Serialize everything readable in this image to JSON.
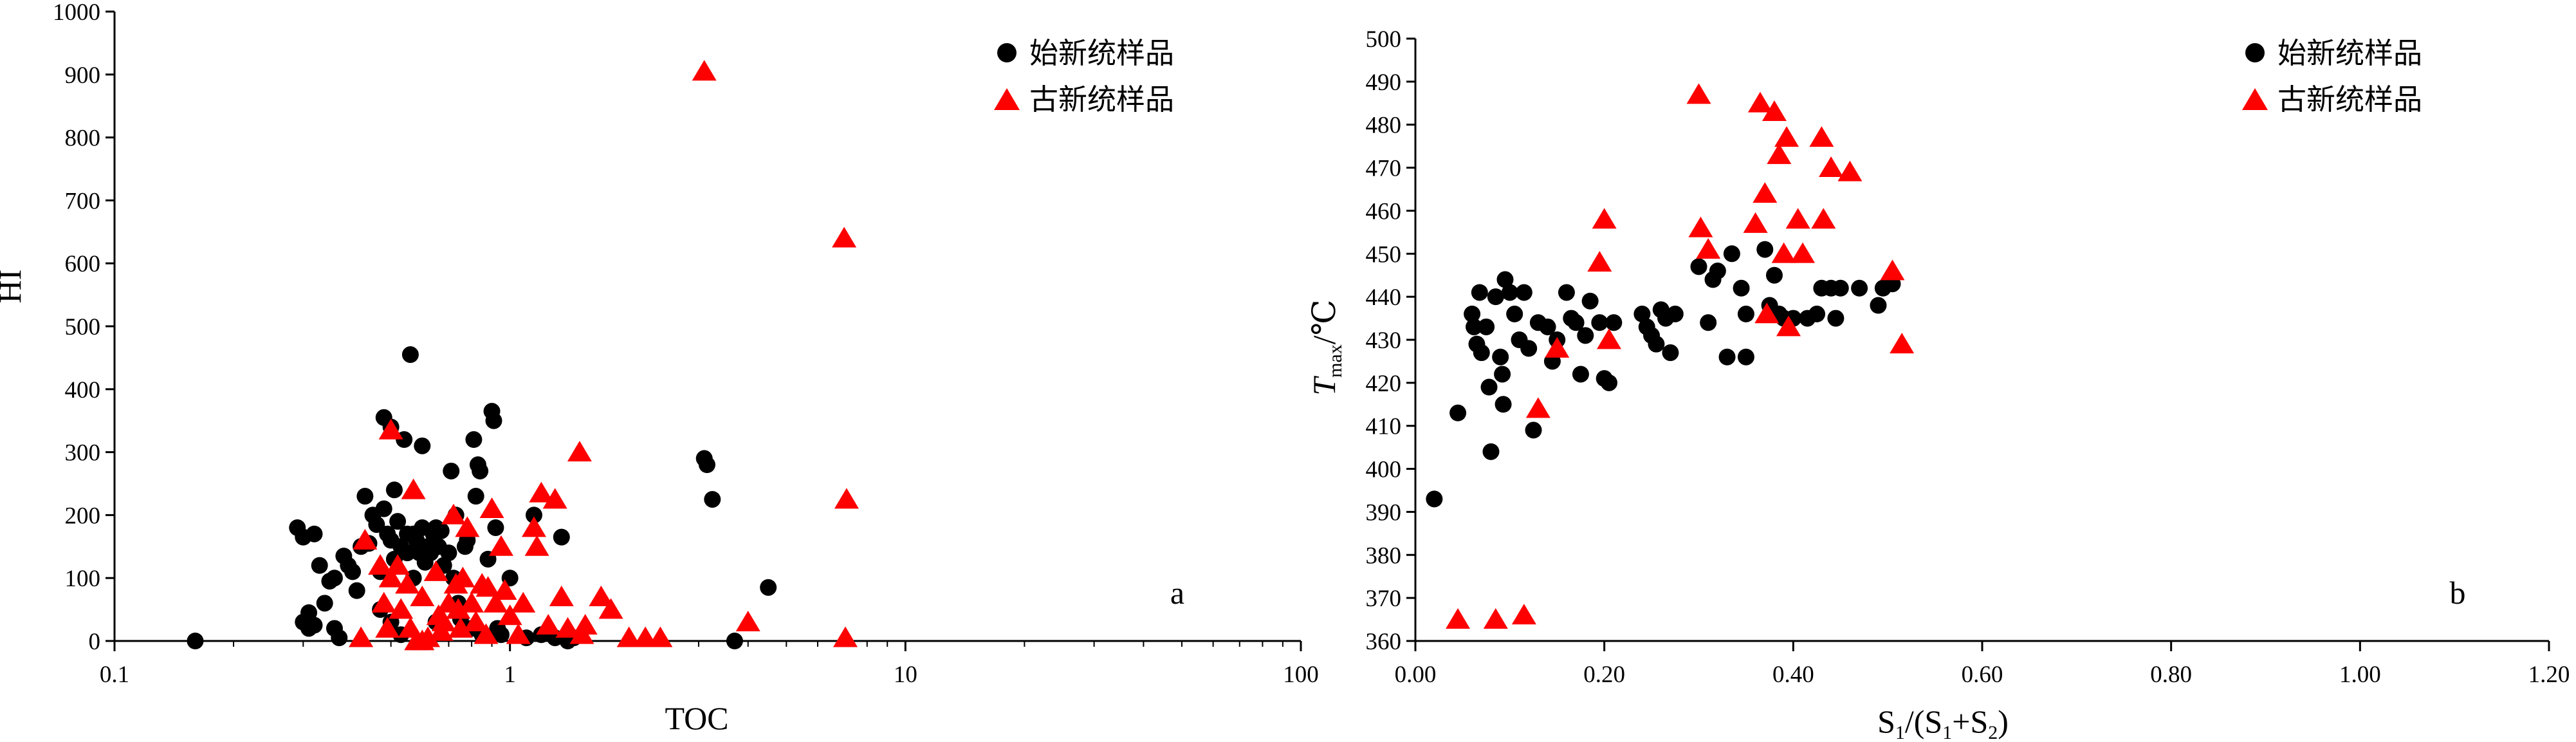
{
  "colors": {
    "series1": "#000000",
    "series2": "#ff0000",
    "axis": "#000000"
  },
  "chart_data": [
    {
      "type": "scatter",
      "panel_label": "a",
      "xlabel": "TOC",
      "ylabel": "HI",
      "xscale": "log",
      "xlim": [
        0.1,
        100
      ],
      "ylim": [
        0,
        1000
      ],
      "xticks": [
        0.1,
        1,
        10,
        100
      ],
      "xtick_labels": [
        "0.1",
        "1",
        "10",
        "100"
      ],
      "yticks": [
        0,
        100,
        200,
        300,
        400,
        500,
        600,
        700,
        800,
        900,
        1000
      ],
      "ytick_labels": [
        "0",
        "100",
        "200",
        "300",
        "400",
        "500",
        "600",
        "700",
        "800",
        "900",
        "1000"
      ],
      "legend": {
        "placement": "top-right"
      },
      "series": [
        {
          "name": "始新统样品",
          "marker": "circle",
          "color": "#000000",
          "points": [
            [
              0.16,
              0
            ],
            [
              0.29,
              180
            ],
            [
              0.3,
              30
            ],
            [
              0.3,
              165
            ],
            [
              0.31,
              45
            ],
            [
              0.31,
              20
            ],
            [
              0.32,
              170
            ],
            [
              0.32,
              25
            ],
            [
              0.33,
              120
            ],
            [
              0.34,
              60
            ],
            [
              0.35,
              95
            ],
            [
              0.36,
              100
            ],
            [
              0.36,
              20
            ],
            [
              0.37,
              5
            ],
            [
              0.38,
              135
            ],
            [
              0.39,
              120
            ],
            [
              0.4,
              110
            ],
            [
              0.41,
              80
            ],
            [
              0.42,
              150
            ],
            [
              0.43,
              230
            ],
            [
              0.44,
              155
            ],
            [
              0.45,
              200
            ],
            [
              0.46,
              185
            ],
            [
              0.47,
              50
            ],
            [
              0.47,
              110
            ],
            [
              0.48,
              355
            ],
            [
              0.48,
              210
            ],
            [
              0.49,
              170
            ],
            [
              0.5,
              30
            ],
            [
              0.5,
              340
            ],
            [
              0.5,
              160
            ],
            [
              0.51,
              130
            ],
            [
              0.51,
              240
            ],
            [
              0.52,
              190
            ],
            [
              0.53,
              150
            ],
            [
              0.53,
              10
            ],
            [
              0.54,
              320
            ],
            [
              0.55,
              170
            ],
            [
              0.55,
              140
            ],
            [
              0.56,
              455
            ],
            [
              0.57,
              170
            ],
            [
              0.57,
              100
            ],
            [
              0.58,
              160
            ],
            [
              0.59,
              140
            ],
            [
              0.6,
              310
            ],
            [
              0.6,
              180
            ],
            [
              0.61,
              125
            ],
            [
              0.62,
              150
            ],
            [
              0.63,
              140
            ],
            [
              0.64,
              170
            ],
            [
              0.65,
              180
            ],
            [
              0.65,
              30
            ],
            [
              0.66,
              150
            ],
            [
              0.67,
              175
            ],
            [
              0.68,
              120
            ],
            [
              0.7,
              140
            ],
            [
              0.71,
              270
            ],
            [
              0.72,
              100
            ],
            [
              0.73,
              200
            ],
            [
              0.74,
              60
            ],
            [
              0.75,
              35
            ],
            [
              0.77,
              150
            ],
            [
              0.78,
              160
            ],
            [
              0.8,
              20
            ],
            [
              0.81,
              320
            ],
            [
              0.82,
              230
            ],
            [
              0.83,
              280
            ],
            [
              0.84,
              270
            ],
            [
              0.85,
              10
            ],
            [
              0.88,
              130
            ],
            [
              0.9,
              365
            ],
            [
              0.91,
              350
            ],
            [
              0.92,
              180
            ],
            [
              0.93,
              20
            ],
            [
              0.95,
              10
            ],
            [
              1.0,
              100
            ],
            [
              1.1,
              5
            ],
            [
              1.15,
              200
            ],
            [
              1.2,
              10
            ],
            [
              1.3,
              5
            ],
            [
              1.35,
              165
            ],
            [
              1.4,
              0
            ],
            [
              1.45,
              5
            ],
            [
              3.1,
              290
            ],
            [
              3.15,
              280
            ],
            [
              3.25,
              225
            ],
            [
              3.7,
              0
            ],
            [
              4.5,
              85
            ]
          ]
        },
        {
          "name": "古新统样品",
          "marker": "triangle",
          "color": "#ff0000",
          "points": [
            [
              0.42,
              5
            ],
            [
              0.43,
              160
            ],
            [
              0.47,
              120
            ],
            [
              0.48,
              60
            ],
            [
              0.49,
              20
            ],
            [
              0.5,
              335
            ],
            [
              0.5,
              100
            ],
            [
              0.52,
              120
            ],
            [
              0.53,
              50
            ],
            [
              0.55,
              90
            ],
            [
              0.56,
              20
            ],
            [
              0.57,
              240
            ],
            [
              0.58,
              0
            ],
            [
              0.6,
              70
            ],
            [
              0.6,
              0
            ],
            [
              0.62,
              5
            ],
            [
              0.65,
              110
            ],
            [
              0.66,
              40
            ],
            [
              0.67,
              15
            ],
            [
              0.68,
              30
            ],
            [
              0.7,
              60
            ],
            [
              0.72,
              200
            ],
            [
              0.73,
              90
            ],
            [
              0.74,
              50
            ],
            [
              0.75,
              20
            ],
            [
              0.76,
              100
            ],
            [
              0.78,
              180
            ],
            [
              0.8,
              60
            ],
            [
              0.82,
              30
            ],
            [
              0.85,
              90
            ],
            [
              0.87,
              10
            ],
            [
              0.88,
              85
            ],
            [
              0.9,
              210
            ],
            [
              0.92,
              60
            ],
            [
              0.95,
              150
            ],
            [
              0.97,
              80
            ],
            [
              1.0,
              40
            ],
            [
              1.05,
              10
            ],
            [
              1.08,
              60
            ],
            [
              1.15,
              180
            ],
            [
              1.17,
              150
            ],
            [
              1.2,
              235
            ],
            [
              1.25,
              25
            ],
            [
              1.3,
              225
            ],
            [
              1.35,
              70
            ],
            [
              1.4,
              20
            ],
            [
              1.5,
              300
            ],
            [
              1.52,
              10
            ],
            [
              1.55,
              25
            ],
            [
              1.7,
              70
            ],
            [
              1.8,
              50
            ],
            [
              2.0,
              5
            ],
            [
              2.2,
              5
            ],
            [
              2.4,
              5
            ],
            [
              3.1,
              905
            ],
            [
              4.0,
              30
            ],
            [
              7.0,
              640
            ],
            [
              7.1,
              225
            ],
            [
              7.05,
              5
            ]
          ]
        }
      ]
    },
    {
      "type": "scatter",
      "panel_label": "b",
      "xlabel_main": "S",
      "xlabel_sub1": "1",
      "xlabel_mid": "/(S",
      "xlabel_sub2": "1",
      "xlabel_plus": "+S",
      "xlabel_sub3": "2",
      "xlabel_end": ")",
      "ylabel_main": "T",
      "ylabel_sub": "max",
      "ylabel_unit": "/℃",
      "xscale": "linear",
      "xlim": [
        0,
        1.2
      ],
      "ylim": [
        360,
        500
      ],
      "xticks": [
        0,
        0.2,
        0.4,
        0.6,
        0.8,
        1.0,
        1.2
      ],
      "xtick_labels": [
        "0.00",
        "0.20",
        "0.40",
        "0.60",
        "0.80",
        "1.00",
        "1.20"
      ],
      "yticks": [
        360,
        370,
        380,
        390,
        400,
        410,
        420,
        430,
        440,
        450,
        460,
        470,
        480,
        490,
        500
      ],
      "ytick_labels": [
        "360",
        "370",
        "380",
        "390",
        "400",
        "410",
        "420",
        "430",
        "440",
        "450",
        "460",
        "470",
        "480",
        "490",
        "500"
      ],
      "legend": {
        "placement": "top-right"
      },
      "series": [
        {
          "name": "始新统样品",
          "marker": "circle",
          "color": "#000000",
          "points": [
            [
              0.02,
              393
            ],
            [
              0.045,
              413
            ],
            [
              0.06,
              436
            ],
            [
              0.062,
              433
            ],
            [
              0.065,
              429
            ],
            [
              0.068,
              441
            ],
            [
              0.07,
              427
            ],
            [
              0.075,
              433
            ],
            [
              0.078,
              419
            ],
            [
              0.08,
              404
            ],
            [
              0.085,
              440
            ],
            [
              0.09,
              426
            ],
            [
              0.092,
              422
            ],
            [
              0.093,
              415
            ],
            [
              0.095,
              444
            ],
            [
              0.1,
              441
            ],
            [
              0.105,
              436
            ],
            [
              0.11,
              430
            ],
            [
              0.115,
              441
            ],
            [
              0.12,
              428
            ],
            [
              0.125,
              409
            ],
            [
              0.13,
              434
            ],
            [
              0.14,
              433
            ],
            [
              0.145,
              425
            ],
            [
              0.15,
              430
            ],
            [
              0.16,
              441
            ],
            [
              0.165,
              435
            ],
            [
              0.17,
              434
            ],
            [
              0.175,
              422
            ],
            [
              0.18,
              431
            ],
            [
              0.185,
              439
            ],
            [
              0.195,
              434
            ],
            [
              0.2,
              421
            ],
            [
              0.205,
              420
            ],
            [
              0.21,
              434
            ],
            [
              0.24,
              436
            ],
            [
              0.245,
              433
            ],
            [
              0.25,
              431
            ],
            [
              0.255,
              429
            ],
            [
              0.26,
              437
            ],
            [
              0.265,
              435
            ],
            [
              0.27,
              427
            ],
            [
              0.275,
              436
            ],
            [
              0.3,
              447
            ],
            [
              0.31,
              434
            ],
            [
              0.315,
              444
            ],
            [
              0.32,
              446
            ],
            [
              0.33,
              426
            ],
            [
              0.335,
              450
            ],
            [
              0.345,
              442
            ],
            [
              0.35,
              436
            ],
            [
              0.35,
              426
            ],
            [
              0.37,
              451
            ],
            [
              0.375,
              438
            ],
            [
              0.38,
              445
            ],
            [
              0.385,
              436
            ],
            [
              0.39,
              435
            ],
            [
              0.4,
              435
            ],
            [
              0.415,
              435
            ],
            [
              0.425,
              436
            ],
            [
              0.43,
              442
            ],
            [
              0.44,
              442
            ],
            [
              0.445,
              435
            ],
            [
              0.45,
              442
            ],
            [
              0.47,
              442
            ],
            [
              0.49,
              438
            ],
            [
              0.495,
              442
            ],
            [
              0.505,
              443
            ]
          ]
        },
        {
          "name": "古新统样品",
          "marker": "triangle",
          "color": "#ff0000",
          "points": [
            [
              0.045,
              365
            ],
            [
              0.085,
              365
            ],
            [
              0.115,
              366
            ],
            [
              0.13,
              414
            ],
            [
              0.15,
              428
            ],
            [
              0.195,
              448
            ],
            [
              0.2,
              458
            ],
            [
              0.205,
              430
            ],
            [
              0.3,
              487
            ],
            [
              0.302,
              456
            ],
            [
              0.31,
              451
            ],
            [
              0.36,
              457
            ],
            [
              0.365,
              485
            ],
            [
              0.37,
              464
            ],
            [
              0.372,
              436
            ],
            [
              0.38,
              483
            ],
            [
              0.385,
              473
            ],
            [
              0.39,
              450
            ],
            [
              0.393,
              477
            ],
            [
              0.395,
              433
            ],
            [
              0.405,
              458
            ],
            [
              0.41,
              450
            ],
            [
              0.43,
              477
            ],
            [
              0.432,
              458
            ],
            [
              0.44,
              470
            ],
            [
              0.46,
              469
            ],
            [
              0.505,
              446
            ],
            [
              0.515,
              429
            ]
          ]
        }
      ]
    }
  ]
}
